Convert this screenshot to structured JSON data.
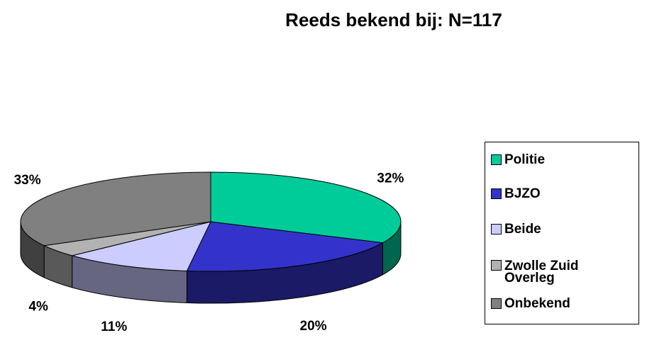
{
  "chart_data": {
    "type": "pie",
    "title": "Reeds bekend bij: N=117",
    "categories": [
      "Politie",
      "BJZO",
      "Beide",
      "Zwolle Zuid Overleg",
      "Onbekend"
    ],
    "values": [
      32,
      20,
      11,
      4,
      33
    ],
    "value_labels": [
      "32%",
      "20%",
      "11%",
      "4%",
      "33%"
    ],
    "colors": [
      "#00cc99",
      "#3333cc",
      "#ccccff",
      "#b2b2b2",
      "#808080"
    ],
    "legend": "right"
  }
}
